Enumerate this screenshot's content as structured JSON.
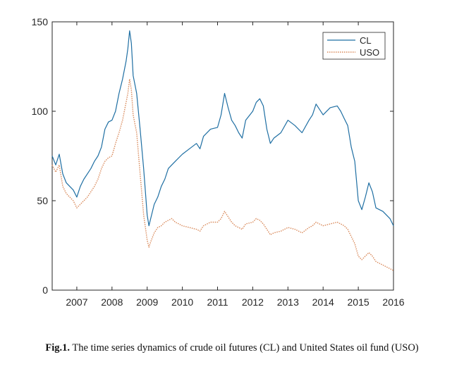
{
  "chart_data": {
    "type": "line",
    "title": "",
    "xlabel": "",
    "ylabel": "",
    "xlim": [
      2006.3,
      2016.0
    ],
    "ylim": [
      0,
      150
    ],
    "x_ticks": [
      2007,
      2008,
      2009,
      2010,
      2011,
      2012,
      2013,
      2014,
      2015,
      2016
    ],
    "x_tick_labels": [
      "2007",
      "2008",
      "2009",
      "2010",
      "2011",
      "2012",
      "2013",
      "2014",
      "2015",
      "2016"
    ],
    "y_ticks": [
      0,
      50,
      100,
      150
    ],
    "y_tick_labels": [
      "0",
      "50",
      "100",
      "150"
    ],
    "grid": false,
    "legend_position": "top-right",
    "series": [
      {
        "name": "CL",
        "color": "#1f6fa3",
        "style": "solid",
        "x": [
          2006.3,
          2006.4,
          2006.5,
          2006.6,
          2006.7,
          2006.8,
          2006.9,
          2007.0,
          2007.1,
          2007.2,
          2007.3,
          2007.4,
          2007.5,
          2007.6,
          2007.7,
          2007.8,
          2007.9,
          2008.0,
          2008.1,
          2008.2,
          2008.3,
          2008.4,
          2008.45,
          2008.5,
          2008.55,
          2008.6,
          2008.7,
          2008.8,
          2008.9,
          2009.0,
          2009.05,
          2009.1,
          2009.2,
          2009.3,
          2009.4,
          2009.5,
          2009.6,
          2009.7,
          2009.8,
          2009.9,
          2010.0,
          2010.2,
          2010.4,
          2010.5,
          2010.6,
          2010.8,
          2011.0,
          2011.1,
          2011.2,
          2011.3,
          2011.4,
          2011.5,
          2011.6,
          2011.7,
          2011.8,
          2012.0,
          2012.1,
          2012.2,
          2012.3,
          2012.4,
          2012.5,
          2012.6,
          2012.8,
          2013.0,
          2013.2,
          2013.4,
          2013.6,
          2013.7,
          2013.8,
          2014.0,
          2014.2,
          2014.4,
          2014.5,
          2014.6,
          2014.7,
          2014.8,
          2014.9,
          2015.0,
          2015.1,
          2015.2,
          2015.3,
          2015.4,
          2015.5,
          2015.6,
          2015.7,
          2015.8,
          2015.9,
          2016.0
        ],
        "values": [
          75,
          70,
          76,
          65,
          60,
          58,
          56,
          52,
          58,
          62,
          65,
          68,
          72,
          75,
          80,
          90,
          94,
          95,
          100,
          110,
          118,
          128,
          135,
          145,
          138,
          120,
          110,
          90,
          68,
          42,
          36,
          40,
          48,
          52,
          58,
          62,
          68,
          70,
          72,
          74,
          76,
          79,
          82,
          79,
          86,
          90,
          91,
          98,
          110,
          102,
          95,
          92,
          88,
          85,
          95,
          100,
          105,
          107,
          103,
          90,
          82,
          85,
          88,
          95,
          92,
          88,
          95,
          98,
          104,
          98,
          102,
          103,
          100,
          96,
          92,
          80,
          72,
          50,
          45,
          52,
          60,
          55,
          46,
          45,
          44,
          42,
          40,
          36
        ]
      },
      {
        "name": "USO",
        "color": "#d9895a",
        "style": "dotted",
        "x": [
          2006.3,
          2006.4,
          2006.5,
          2006.6,
          2006.7,
          2006.8,
          2006.9,
          2007.0,
          2007.1,
          2007.2,
          2007.3,
          2007.4,
          2007.5,
          2007.6,
          2007.7,
          2007.8,
          2007.9,
          2008.0,
          2008.1,
          2008.2,
          2008.3,
          2008.4,
          2008.45,
          2008.5,
          2008.55,
          2008.6,
          2008.7,
          2008.8,
          2008.9,
          2009.0,
          2009.05,
          2009.1,
          2009.2,
          2009.3,
          2009.4,
          2009.5,
          2009.6,
          2009.7,
          2009.8,
          2009.9,
          2010.0,
          2010.2,
          2010.4,
          2010.5,
          2010.6,
          2010.8,
          2011.0,
          2011.1,
          2011.2,
          2011.3,
          2011.4,
          2011.5,
          2011.6,
          2011.7,
          2011.8,
          2012.0,
          2012.1,
          2012.2,
          2012.3,
          2012.4,
          2012.5,
          2012.6,
          2012.8,
          2013.0,
          2013.2,
          2013.4,
          2013.6,
          2013.7,
          2013.8,
          2014.0,
          2014.2,
          2014.4,
          2014.5,
          2014.6,
          2014.7,
          2014.8,
          2014.9,
          2015.0,
          2015.1,
          2015.2,
          2015.3,
          2015.4,
          2015.5,
          2015.6,
          2015.7,
          2015.8,
          2015.9,
          2016.0
        ],
        "values": [
          70,
          66,
          70,
          58,
          54,
          52,
          50,
          46,
          48,
          50,
          52,
          55,
          58,
          62,
          68,
          72,
          74,
          75,
          82,
          88,
          95,
          105,
          110,
          118,
          112,
          98,
          88,
          65,
          42,
          28,
          24,
          27,
          32,
          35,
          36,
          38,
          39,
          40,
          38,
          37,
          36,
          35,
          34,
          33,
          36,
          38,
          38,
          40,
          44,
          41,
          38,
          36,
          35,
          34,
          37,
          38,
          40,
          39,
          37,
          34,
          31,
          32,
          33,
          35,
          34,
          32,
          35,
          36,
          38,
          36,
          37,
          38,
          37,
          36,
          34,
          30,
          26,
          19,
          17,
          19,
          21,
          19,
          16,
          15,
          14,
          13,
          12,
          11
        ]
      }
    ]
  },
  "caption": {
    "label": "Fig.1.",
    "text": "The time series dynamics of crude oil futures (CL) and United States oil fund (USO)"
  }
}
